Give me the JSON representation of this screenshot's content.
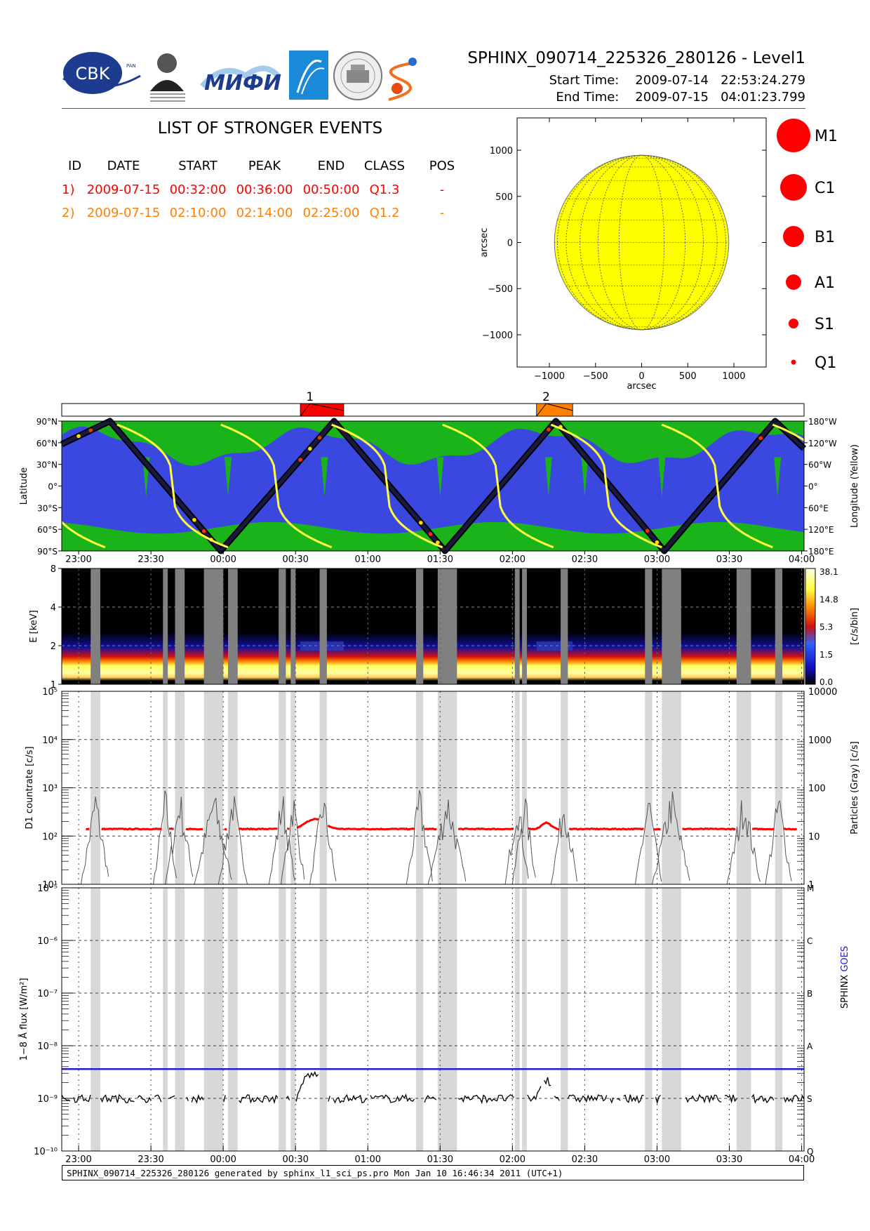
{
  "header": {
    "title": "SPHINX_090714_225326_280126 - Level1",
    "start_label": "Start Time:",
    "start_value": "2009-07-14   22:53:24.279",
    "end_label": "End Time:",
    "end_value": "2009-07-15   04:01:23.799"
  },
  "logos": [
    {
      "name": "cbk-pan-logo",
      "text": "CBK",
      "sub": "PAN"
    },
    {
      "name": "lebedev-institute-logo",
      "text": "P.N.Lebedev Physical Institute of the Russian Academy of Science"
    },
    {
      "name": "mifi-logo",
      "text": "МИФИ"
    },
    {
      "name": "blue-arrow-logo"
    },
    {
      "name": "seal-logo"
    },
    {
      "name": "sun-swirl-logo"
    }
  ],
  "events": {
    "title": "LIST OF STRONGER EVENTS",
    "headers": [
      "ID",
      "DATE",
      "START",
      "PEAK",
      "END",
      "CLASS",
      "POS"
    ],
    "rows": [
      {
        "id": "1)",
        "date": "2009-07-15",
        "start": "00:32:00",
        "peak": "00:36:00",
        "end": "00:50:00",
        "cls": "Q1.3",
        "pos": "-",
        "color": "#ff0000"
      },
      {
        "id": "2)",
        "date": "2009-07-15",
        "start": "02:10:00",
        "peak": "02:14:00",
        "end": "02:25:00",
        "cls": "Q1.2",
        "pos": "-",
        "color": "#ff8000"
      }
    ]
  },
  "disk": {
    "xlabel": "arcsec",
    "ylabel": "arcsec",
    "ticks": [
      -1000,
      -500,
      0,
      500,
      1000
    ],
    "tick_labels": [
      "−1000",
      "−500",
      "0",
      "500",
      "1000"
    ],
    "range": [
      -1350,
      1350
    ],
    "sun_radius": 945,
    "sun_color": "#ffff00"
  },
  "size_legend": {
    "labels": [
      "M1",
      "C1",
      "B1",
      "A1",
      "S1",
      "Q1"
    ],
    "color": "#ff0000"
  },
  "timeline": {
    "event_labels": [
      "1",
      "2"
    ],
    "event_colors": [
      "#ff0000",
      "#ff8000"
    ],
    "events": [
      {
        "start": 32,
        "peak": 36,
        "end": 50
      },
      {
        "start": 130,
        "peak": 134,
        "end": 145
      }
    ]
  },
  "time_axis": {
    "start_min": -67,
    "end_min": 241,
    "tick_minutes": [
      -60,
      -30,
      0,
      30,
      60,
      90,
      120,
      150,
      180,
      210,
      240
    ],
    "tick_labels": [
      "23:00",
      "23:30",
      "00:00",
      "00:30",
      "01:00",
      "01:30",
      "02:00",
      "02:30",
      "03:00",
      "03:30",
      "04:00"
    ]
  },
  "orbit": {
    "ylabel": "Latitude",
    "y2label": "Longitude (Yellow)",
    "lat_labels": [
      "90°N",
      "60°N",
      "30°N",
      "0°",
      "30°S",
      "60°S",
      "90°S"
    ],
    "lon_labels": [
      "180°W",
      "120°W",
      "60°W",
      "0°",
      "60°E",
      "120°E",
      "180°E"
    ],
    "colors": {
      "background": "#3a48e0",
      "regions": "#1ab31a",
      "track": "#000000",
      "longitude": "#ffff40"
    }
  },
  "spectrogram": {
    "ylabel": "E [keV]",
    "y_ticks": [
      1,
      2,
      4,
      8
    ],
    "y_tick_labels": [
      "1",
      "2",
      "4",
      "8"
    ],
    "cbar_label": "[c/s/bin]",
    "cbar_ticks": [
      "38.1",
      "14.8",
      "5.3",
      "1.5",
      "0.0"
    ],
    "gap_color": "#808080"
  },
  "countrate": {
    "ylabel": "D1 countrate [c/s]",
    "y2label": "Particles (Gray) [c/s]",
    "y_ticks_exp": [
      1,
      2,
      3,
      4,
      5
    ],
    "y_labels": [
      "10¹",
      "10²",
      "10³",
      "10⁴",
      "10⁵"
    ],
    "y2_labels": [
      "1",
      "10",
      "100",
      "1000",
      "10000"
    ],
    "series_color": "#ff0000",
    "particles_color": "#555555",
    "typical_value": 140
  },
  "flux": {
    "ylabel": "1−8 Å flux [W/m²]",
    "y2label_a": "SPHINX",
    "y2label_b": "GOES",
    "y_ticks_exp": [
      -10,
      -9,
      -8,
      -7,
      -6,
      -5
    ],
    "y_labels": [
      "10⁻¹⁰",
      "10⁻⁹",
      "10⁻⁸",
      "10⁻⁷",
      "10⁻⁶",
      "10⁻⁵"
    ],
    "class_labels": [
      "Q",
      "S",
      "A",
      "B",
      "C",
      "M"
    ],
    "goes_value": 3.6e-09,
    "goes_color": "#2020d0",
    "sphinx_color": "#000000",
    "typical_value": 1e-09
  },
  "gaps": [
    {
      "start": -55,
      "end": -51
    },
    {
      "start": -25,
      "end": -23
    },
    {
      "start": -20,
      "end": -16
    },
    {
      "start": -8,
      "end": 0
    },
    {
      "start": 2,
      "end": 6
    },
    {
      "start": 23,
      "end": 26
    },
    {
      "start": 28,
      "end": 30
    },
    {
      "start": 40,
      "end": 43
    },
    {
      "start": 80,
      "end": 83
    },
    {
      "start": 89,
      "end": 97
    },
    {
      "start": 121,
      "end": 123
    },
    {
      "start": 124,
      "end": 126
    },
    {
      "start": 140,
      "end": 143
    },
    {
      "start": 175,
      "end": 178
    },
    {
      "start": 182,
      "end": 190
    },
    {
      "start": 213,
      "end": 219
    },
    {
      "start": 229,
      "end": 232
    }
  ],
  "chart_data": [
    {
      "type": "line",
      "title": "SPHINX_090714_225326_280126 - Level1",
      "xlabel": "",
      "ylabel": "D1 countrate [c/s]",
      "yscale": "log",
      "ylim": [
        10,
        100000
      ],
      "x": [
        "23:00",
        "23:30",
        "00:00",
        "00:30",
        "00:35",
        "00:40",
        "01:00",
        "01:30",
        "02:00",
        "02:14",
        "02:30",
        "03:00",
        "03:30",
        "04:00"
      ],
      "series": [
        {
          "name": "",
          "values": [
            140,
            140,
            145,
            150,
            220,
            150,
            140,
            140,
            140,
            190,
            140,
            145,
            140,
            145
          ]
        }
      ]
    },
    {
      "type": "line",
      "xlabel": "",
      "ylabel": "1−8 Å flux [W/m²]",
      "yscale": "log",
      "ylim": [
        1e-10,
        1e-05
      ],
      "x": [
        "23:00",
        "23:30",
        "00:00",
        "00:30",
        "00:36",
        "00:45",
        "01:00",
        "01:30",
        "02:00",
        "02:14",
        "02:30",
        "03:00",
        "03:30",
        "04:00"
      ],
      "series": [
        {
          "name": "SPHINX",
          "values": [
            1e-09,
            1e-09,
            1.1e-09,
            1e-09,
            2.8e-09,
            1.2e-09,
            1e-09,
            1e-09,
            1e-09,
            2.3e-09,
            1e-09,
            1e-09,
            1e-09,
            1e-09
          ]
        },
        {
          "name": "GOES",
          "values": [
            3.6e-09,
            3.6e-09,
            3.6e-09,
            3.6e-09,
            3.6e-09,
            3.6e-09,
            3.6e-09,
            3.6e-09,
            3.6e-09,
            3.6e-09,
            3.6e-09,
            3.6e-09,
            3.6e-09,
            3.6e-09
          ]
        }
      ]
    }
  ],
  "footer": {
    "text": "SPHINX_090714_225326_280126 generated by sphinx_l1_sci_ps.pro Mon Jan 10 16:46:34 2011 (UTC+1)"
  }
}
